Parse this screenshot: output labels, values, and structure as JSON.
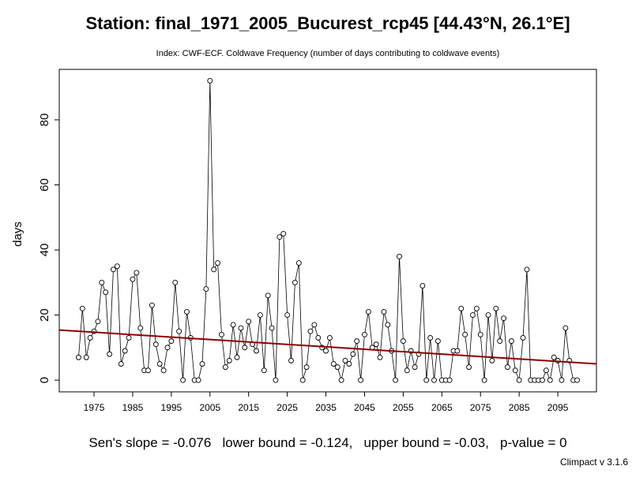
{
  "chart_data": {
    "type": "line",
    "title": "Station: final_1971_2005_Bucurest_rcp45 [44.43°N, 26.1°E]",
    "subtitle": "Index: CWF-ECF. Coldwave Frequency (number of days contributing to coldwave events)",
    "y_label": "days",
    "footer": "Sen's slope = -0.076   lower bound = -0.124,   upper bound = -0.03,   p-value = 0",
    "credit": "Climpact v 3.1.6",
    "x": [
      1971,
      1972,
      1973,
      1974,
      1975,
      1976,
      1977,
      1978,
      1979,
      1980,
      1981,
      1982,
      1983,
      1984,
      1985,
      1986,
      1987,
      1988,
      1989,
      1990,
      1991,
      1992,
      1993,
      1994,
      1995,
      1996,
      1997,
      1998,
      1999,
      2000,
      2001,
      2002,
      2003,
      2004,
      2005,
      2006,
      2007,
      2008,
      2009,
      2010,
      2011,
      2012,
      2013,
      2014,
      2015,
      2016,
      2017,
      2018,
      2019,
      2020,
      2021,
      2022,
      2023,
      2024,
      2025,
      2026,
      2027,
      2028,
      2029,
      2030,
      2031,
      2032,
      2033,
      2034,
      2035,
      2036,
      2037,
      2038,
      2039,
      2040,
      2041,
      2042,
      2043,
      2044,
      2045,
      2046,
      2047,
      2048,
      2049,
      2050,
      2051,
      2052,
      2053,
      2054,
      2055,
      2056,
      2057,
      2058,
      2059,
      2060,
      2061,
      2062,
      2063,
      2064,
      2065,
      2066,
      2067,
      2068,
      2069,
      2070,
      2071,
      2072,
      2073,
      2074,
      2075,
      2076,
      2077,
      2078,
      2079,
      2080,
      2081,
      2082,
      2083,
      2084,
      2085,
      2086,
      2087,
      2088,
      2089,
      2090,
      2091,
      2092,
      2093,
      2094,
      2095,
      2096,
      2097,
      2098,
      2099,
      2100
    ],
    "series": [
      {
        "color": "#000000",
        "values": [
          7,
          22,
          7,
          13,
          15,
          18,
          30,
          27,
          8,
          34,
          35,
          5,
          9,
          13,
          31,
          33,
          16,
          3,
          3,
          23,
          11,
          5,
          3,
          10,
          12,
          30,
          15,
          0,
          21,
          13,
          0,
          0,
          5,
          28,
          92,
          34,
          36,
          14,
          4,
          6,
          17,
          7,
          16,
          10,
          18,
          11,
          9,
          20,
          3,
          26,
          16,
          0,
          44,
          45,
          20,
          6,
          30,
          36,
          0,
          4,
          15,
          17,
          13,
          10,
          9,
          13,
          5,
          4,
          0,
          6,
          5,
          8,
          12,
          0,
          14,
          21,
          10,
          11,
          7,
          21,
          17,
          9,
          0,
          38,
          12,
          3,
          9,
          4,
          8,
          29,
          0,
          13,
          0,
          12,
          0,
          0,
          0,
          9,
          9,
          22,
          14,
          4,
          20,
          22,
          14,
          0,
          20,
          6,
          22,
          12,
          19,
          4,
          12,
          3,
          0,
          13,
          34,
          0,
          0,
          0,
          0,
          3,
          0,
          7,
          6,
          0,
          16,
          6,
          0,
          0
        ]
      }
    ],
    "trend": {
      "x": [
        1966,
        2105
      ],
      "values": [
        15.4,
        5.0
      ],
      "color": "#8b0000"
    },
    "xlim": [
      1966,
      2105
    ],
    "ylim": [
      -3.6,
      95.5
    ],
    "xticks": [
      1975,
      1985,
      1995,
      2005,
      2015,
      2025,
      2035,
      2045,
      2055,
      2065,
      2075,
      2085,
      2095
    ],
    "yticks": [
      0,
      20,
      40,
      60,
      80
    ]
  }
}
